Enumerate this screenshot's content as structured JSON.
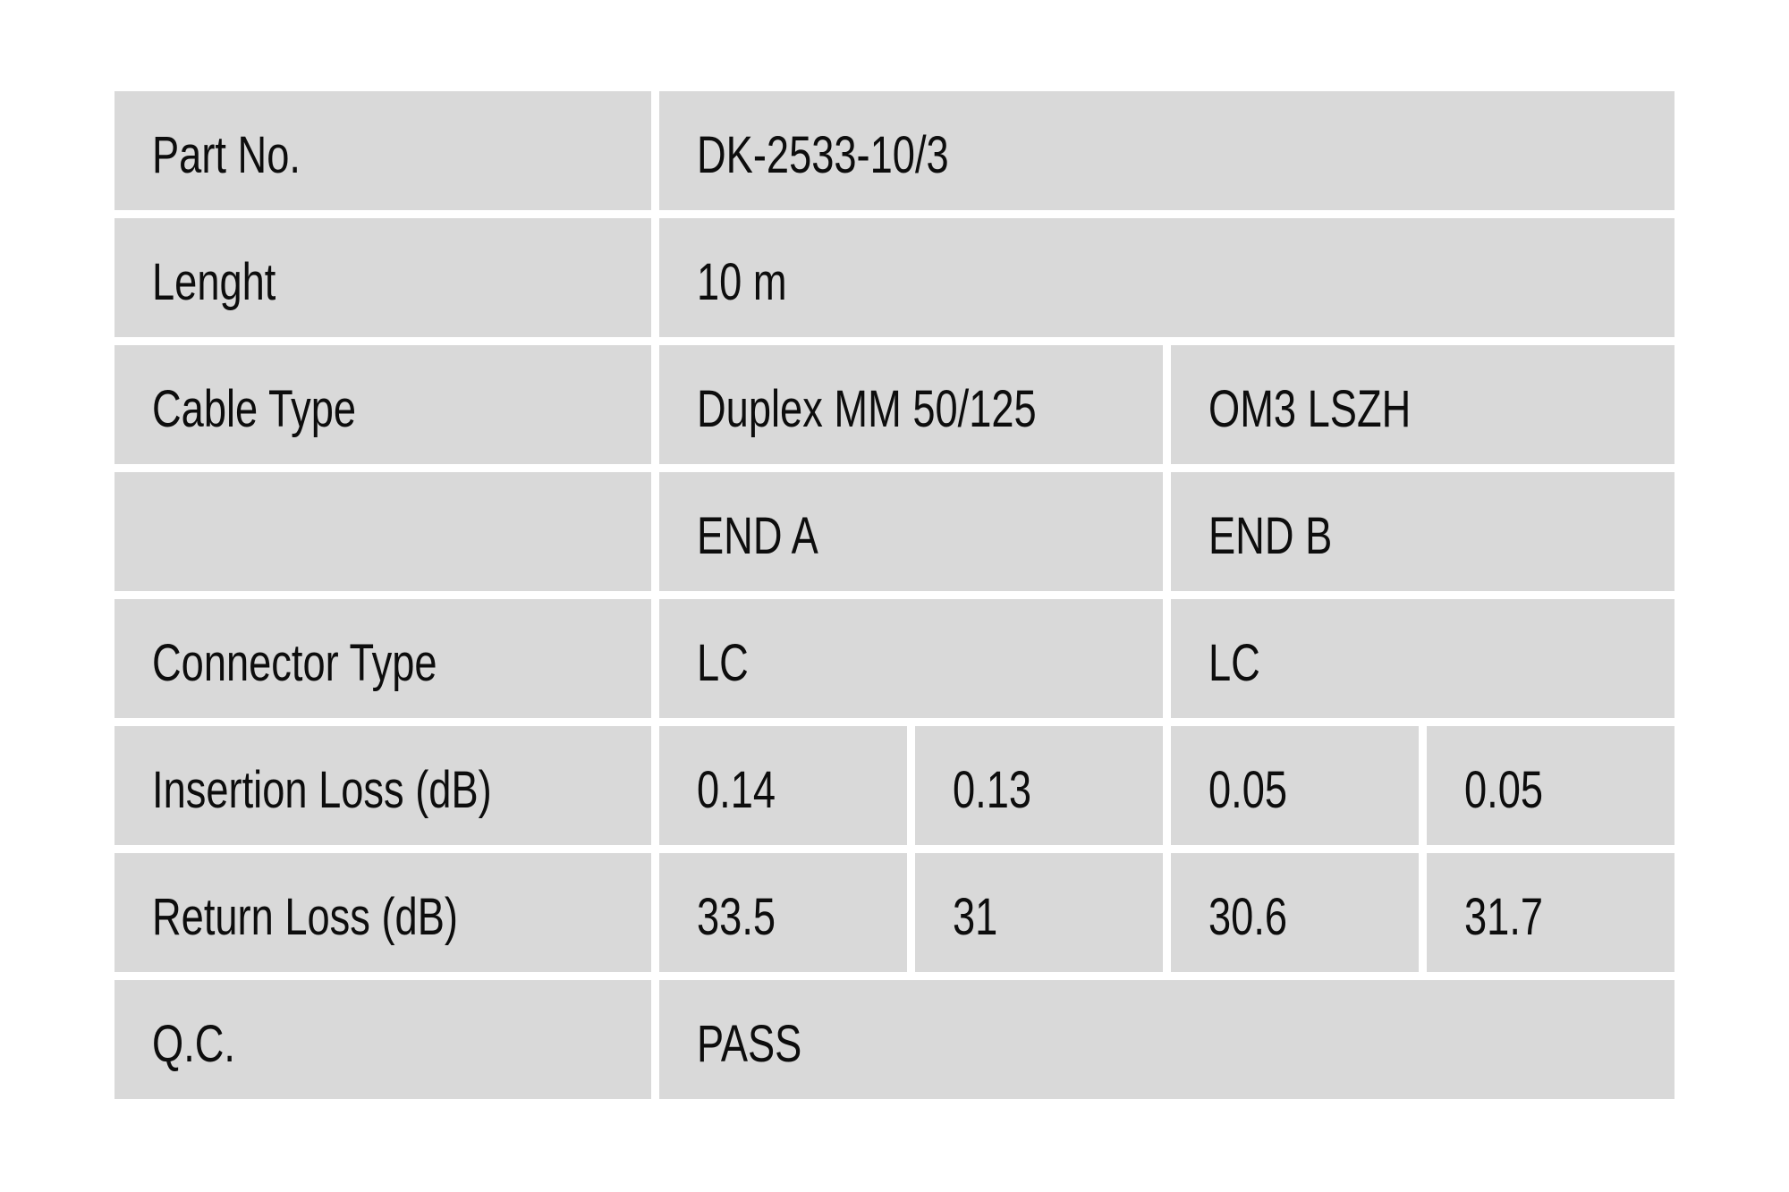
{
  "table": {
    "cell_bg": "#d9d9d9",
    "page_bg": "#ffffff",
    "text_color": "#0d0d0d",
    "rows": {
      "part_no": {
        "label": "Part No.",
        "value": "DK-2533-10/3"
      },
      "length": {
        "label": "Lenght",
        "value": "10 m"
      },
      "cable_type": {
        "label": "Cable Type",
        "value_a": "Duplex MM 50/125",
        "value_b": "OM3 LSZH"
      },
      "ends": {
        "label": "",
        "end_a": "END A",
        "end_b": "END B"
      },
      "connector_type": {
        "label": "Connector Type",
        "end_a": "LC",
        "end_b": "LC"
      },
      "insertion_loss": {
        "label": "Insertion Loss (dB)",
        "values": [
          "0.14",
          "0.13",
          "0.05",
          "0.05"
        ]
      },
      "return_loss": {
        "label": "Return Loss (dB)",
        "values": [
          "33.5",
          "31",
          "30.6",
          "31.7"
        ]
      },
      "qc": {
        "label": "Q.C.",
        "value": "PASS"
      }
    }
  }
}
